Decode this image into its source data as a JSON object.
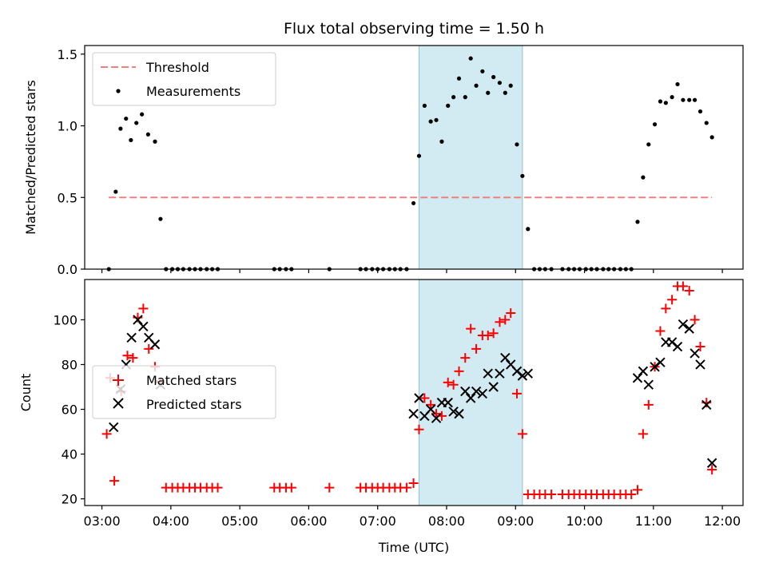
{
  "chart_data": [
    {
      "type": "scatter",
      "title": "Flux total observing time = 1.50 h",
      "xlabel": "",
      "ylabel": "Matched/Predicted stars",
      "x_range_hours": [
        2.75,
        12.3
      ],
      "ylim": [
        0,
        1.56
      ],
      "yticks": [
        0,
        0.5,
        1.0,
        1.5
      ],
      "ytick_labels": [
        "0.0",
        "0.5",
        "1.0",
        "1.5"
      ],
      "shaded_interval_hours": [
        7.6,
        9.1
      ],
      "shade_color": "#add8e6",
      "legend_position": "upper-left",
      "threshold": {
        "name": "Threshold",
        "value": 0.5,
        "x_range_hours": [
          3.1,
          11.85
        ],
        "color": "#f08080",
        "style": "dashed"
      },
      "series": [
        {
          "name": "Measurements",
          "color": "#000000",
          "marker": "dot",
          "points": [
            [
              3.1,
              0
            ],
            [
              3.2,
              0.54
            ],
            [
              3.27,
              0.98
            ],
            [
              3.35,
              1.05
            ],
            [
              3.42,
              0.9
            ],
            [
              3.5,
              1.02
            ],
            [
              3.58,
              1.08
            ],
            [
              3.67,
              0.94
            ],
            [
              3.77,
              0.89
            ],
            [
              3.85,
              0.35
            ],
            [
              3.93,
              0
            ],
            [
              4.02,
              0
            ],
            [
              4.1,
              0
            ],
            [
              4.18,
              0
            ],
            [
              4.27,
              0
            ],
            [
              4.35,
              0
            ],
            [
              4.43,
              0
            ],
            [
              4.52,
              0
            ],
            [
              4.6,
              0
            ],
            [
              4.68,
              0
            ],
            [
              5.5,
              0
            ],
            [
              5.58,
              0
            ],
            [
              5.67,
              0
            ],
            [
              5.75,
              0
            ],
            [
              6.3,
              0
            ],
            [
              6.75,
              0
            ],
            [
              6.83,
              0
            ],
            [
              6.92,
              0
            ],
            [
              7,
              0
            ],
            [
              7.08,
              0
            ],
            [
              7.17,
              0
            ],
            [
              7.25,
              0
            ],
            [
              7.33,
              0
            ],
            [
              7.42,
              0
            ],
            [
              7.52,
              0.46
            ],
            [
              7.6,
              0.79
            ],
            [
              7.68,
              1.14
            ],
            [
              7.77,
              1.03
            ],
            [
              7.85,
              1.04
            ],
            [
              7.93,
              0.89
            ],
            [
              8.02,
              1.14
            ],
            [
              8.1,
              1.2
            ],
            [
              8.18,
              1.33
            ],
            [
              8.27,
              1.2
            ],
            [
              8.35,
              1.47
            ],
            [
              8.43,
              1.28
            ],
            [
              8.52,
              1.38
            ],
            [
              8.6,
              1.23
            ],
            [
              8.68,
              1.34
            ],
            [
              8.77,
              1.3
            ],
            [
              8.85,
              1.23
            ],
            [
              8.93,
              1.28
            ],
            [
              9.02,
              0.87
            ],
            [
              9.1,
              0.65
            ],
            [
              9.18,
              0.28
            ],
            [
              9.27,
              0
            ],
            [
              9.35,
              0
            ],
            [
              9.43,
              0
            ],
            [
              9.52,
              0
            ],
            [
              9.68,
              0
            ],
            [
              9.77,
              0
            ],
            [
              9.85,
              0
            ],
            [
              9.93,
              0
            ],
            [
              10.02,
              0
            ],
            [
              10.1,
              0
            ],
            [
              10.18,
              0
            ],
            [
              10.27,
              0
            ],
            [
              10.35,
              0
            ],
            [
              10.43,
              0
            ],
            [
              10.52,
              0
            ],
            [
              10.6,
              0
            ],
            [
              10.68,
              0
            ],
            [
              10.77,
              0.33
            ],
            [
              10.85,
              0.64
            ],
            [
              10.93,
              0.87
            ],
            [
              11.02,
              1.01
            ],
            [
              11.1,
              1.17
            ],
            [
              11.18,
              1.16
            ],
            [
              11.27,
              1.2
            ],
            [
              11.35,
              1.29
            ],
            [
              11.43,
              1.18
            ],
            [
              11.52,
              1.18
            ],
            [
              11.6,
              1.18
            ],
            [
              11.68,
              1.1
            ],
            [
              11.77,
              1.02
            ],
            [
              11.85,
              0.92
            ]
          ]
        }
      ]
    },
    {
      "type": "scatter",
      "title": "",
      "xlabel": "Time (UTC)",
      "ylabel": "Count",
      "x_range_hours": [
        2.75,
        12.3
      ],
      "ylim": [
        17,
        118
      ],
      "yticks": [
        20,
        40,
        60,
        80,
        100
      ],
      "ytick_labels": [
        "20",
        "40",
        "60",
        "80",
        "100"
      ],
      "xticks_hours": [
        3,
        4,
        5,
        6,
        7,
        8,
        9,
        10,
        11,
        12
      ],
      "xtick_labels": [
        "03:00",
        "04:00",
        "05:00",
        "06:00",
        "07:00",
        "08:00",
        "09:00",
        "10:00",
        "11:00",
        "12:00"
      ],
      "shaded_interval_hours": [
        7.6,
        9.1
      ],
      "shade_color": "#add8e6",
      "legend_position": "center-left",
      "series": [
        {
          "name": "Matched stars",
          "color": "#ff0000",
          "marker": "plus",
          "points": [
            [
              3.07,
              49
            ],
            [
              3.12,
              74
            ],
            [
              3.18,
              28
            ],
            [
              3.28,
              68
            ],
            [
              3.37,
              84
            ],
            [
              3.45,
              83
            ],
            [
              3.52,
              101
            ],
            [
              3.6,
              105
            ],
            [
              3.68,
              87
            ],
            [
              3.77,
              79
            ],
            [
              3.85,
              72
            ],
            [
              3.93,
              25
            ],
            [
              4.02,
              25
            ],
            [
              4.1,
              25
            ],
            [
              4.18,
              25
            ],
            [
              4.27,
              25
            ],
            [
              4.35,
              25
            ],
            [
              4.43,
              25
            ],
            [
              4.52,
              25
            ],
            [
              4.6,
              25
            ],
            [
              4.68,
              25
            ],
            [
              5.5,
              25
            ],
            [
              5.58,
              25
            ],
            [
              5.67,
              25
            ],
            [
              5.75,
              25
            ],
            [
              6.3,
              25
            ],
            [
              6.75,
              25
            ],
            [
              6.83,
              25
            ],
            [
              6.92,
              25
            ],
            [
              7,
              25
            ],
            [
              7.08,
              25
            ],
            [
              7.17,
              25
            ],
            [
              7.25,
              25
            ],
            [
              7.33,
              25
            ],
            [
              7.42,
              25
            ],
            [
              7.52,
              27
            ],
            [
              7.6,
              51
            ],
            [
              7.68,
              65
            ],
            [
              7.77,
              62
            ],
            [
              7.85,
              58
            ],
            [
              7.93,
              57
            ],
            [
              8.02,
              72
            ],
            [
              8.1,
              71
            ],
            [
              8.18,
              77
            ],
            [
              8.27,
              83
            ],
            [
              8.35,
              96
            ],
            [
              8.43,
              87
            ],
            [
              8.52,
              93
            ],
            [
              8.6,
              93
            ],
            [
              8.68,
              94
            ],
            [
              8.77,
              99
            ],
            [
              8.85,
              100
            ],
            [
              8.93,
              103
            ],
            [
              9.02,
              67
            ],
            [
              9.1,
              49
            ],
            [
              9.18,
              22
            ],
            [
              9.27,
              22
            ],
            [
              9.35,
              22
            ],
            [
              9.43,
              22
            ],
            [
              9.52,
              22
            ],
            [
              9.68,
              22
            ],
            [
              9.77,
              22
            ],
            [
              9.85,
              22
            ],
            [
              9.93,
              22
            ],
            [
              10.02,
              22
            ],
            [
              10.1,
              22
            ],
            [
              10.18,
              22
            ],
            [
              10.27,
              22
            ],
            [
              10.35,
              22
            ],
            [
              10.43,
              22
            ],
            [
              10.52,
              22
            ],
            [
              10.6,
              22
            ],
            [
              10.68,
              22
            ],
            [
              10.77,
              24
            ],
            [
              10.85,
              49
            ],
            [
              10.93,
              62
            ],
            [
              11.02,
              79
            ],
            [
              11.1,
              95
            ],
            [
              11.18,
              105
            ],
            [
              11.27,
              109
            ],
            [
              11.35,
              115
            ],
            [
              11.43,
              115
            ],
            [
              11.52,
              113
            ],
            [
              11.6,
              100
            ],
            [
              11.68,
              88
            ],
            [
              11.77,
              63
            ],
            [
              11.85,
              33
            ]
          ]
        },
        {
          "name": "Predicted stars",
          "color": "#000000",
          "marker": "x",
          "points": [
            [
              3.17,
              52
            ],
            [
              3.27,
              69
            ],
            [
              3.35,
              80
            ],
            [
              3.43,
              92
            ],
            [
              3.52,
              100
            ],
            [
              3.6,
              97
            ],
            [
              3.68,
              92
            ],
            [
              3.77,
              89
            ],
            [
              3.85,
              71
            ],
            [
              7.52,
              58
            ],
            [
              7.6,
              65
            ],
            [
              7.68,
              57
            ],
            [
              7.77,
              60
            ],
            [
              7.85,
              56
            ],
            [
              7.93,
              63
            ],
            [
              8.02,
              63
            ],
            [
              8.1,
              59
            ],
            [
              8.18,
              58
            ],
            [
              8.27,
              68
            ],
            [
              8.35,
              65
            ],
            [
              8.43,
              68
            ],
            [
              8.52,
              67
            ],
            [
              8.6,
              76
            ],
            [
              8.68,
              70
            ],
            [
              8.77,
              76
            ],
            [
              8.85,
              83
            ],
            [
              8.93,
              80
            ],
            [
              9.02,
              77
            ],
            [
              9.1,
              75
            ],
            [
              9.18,
              76
            ],
            [
              10.77,
              74
            ],
            [
              10.85,
              77
            ],
            [
              10.93,
              71
            ],
            [
              11.02,
              79
            ],
            [
              11.1,
              81
            ],
            [
              11.18,
              90
            ],
            [
              11.27,
              90
            ],
            [
              11.35,
              88
            ],
            [
              11.43,
              98
            ],
            [
              11.52,
              96
            ],
            [
              11.6,
              85
            ],
            [
              11.68,
              80
            ],
            [
              11.77,
              62
            ],
            [
              11.85,
              36
            ]
          ]
        }
      ]
    }
  ]
}
